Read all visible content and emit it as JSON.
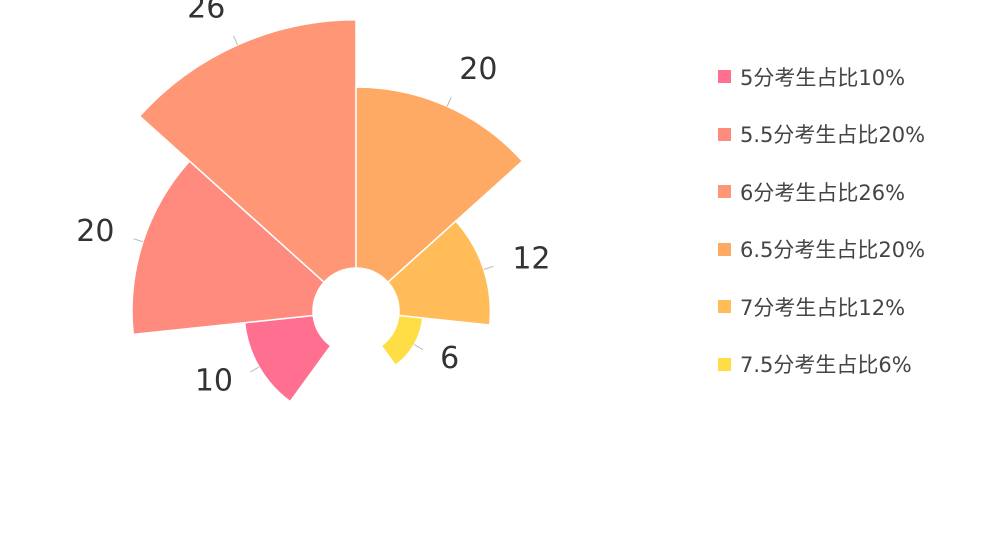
{
  "chart_data": {
    "type": "pie",
    "variant": "rose",
    "categories": [
      "5分考生占比10%",
      "5.5分考生占比20%",
      "6分考生占比26%",
      "6.5分考生占比20%",
      "7分考生占比12%",
      "7.5分考生占比6%"
    ],
    "values": [
      10,
      20,
      26,
      20,
      12,
      6
    ],
    "colors": [
      "#ff7090",
      "#ff8a7e",
      "#ff9675",
      "#ffaa64",
      "#ffbc58",
      "#ffdd44"
    ],
    "legend_position": "right"
  }
}
